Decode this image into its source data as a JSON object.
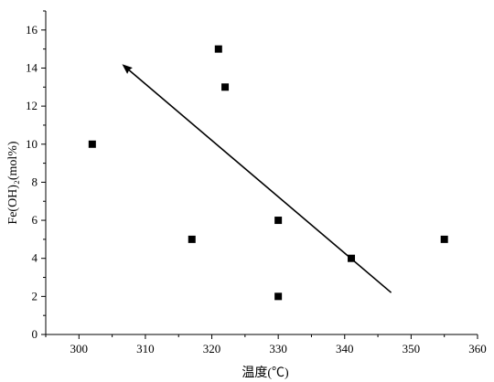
{
  "chart_data": {
    "type": "scatter",
    "xlabel": "温度(℃)",
    "ylabel": "Fe(OH)₂(mol%)",
    "xlim": [
      295,
      360
    ],
    "ylim": [
      0,
      17
    ],
    "x_ticks": [
      300,
      310,
      320,
      330,
      340,
      350,
      360
    ],
    "y_ticks": [
      0,
      2,
      4,
      6,
      8,
      10,
      12,
      14,
      16
    ],
    "grid": false,
    "series": [
      {
        "x": [
          302,
          317,
          321,
          322,
          330,
          330,
          341,
          355
        ],
        "y": [
          10,
          5,
          15,
          13,
          6,
          2,
          4,
          5
        ]
      }
    ],
    "annotations": [
      {
        "type": "arrow",
        "from": [
          347,
          2.2
        ],
        "to": [
          306.5,
          14.2
        ]
      }
    ]
  }
}
